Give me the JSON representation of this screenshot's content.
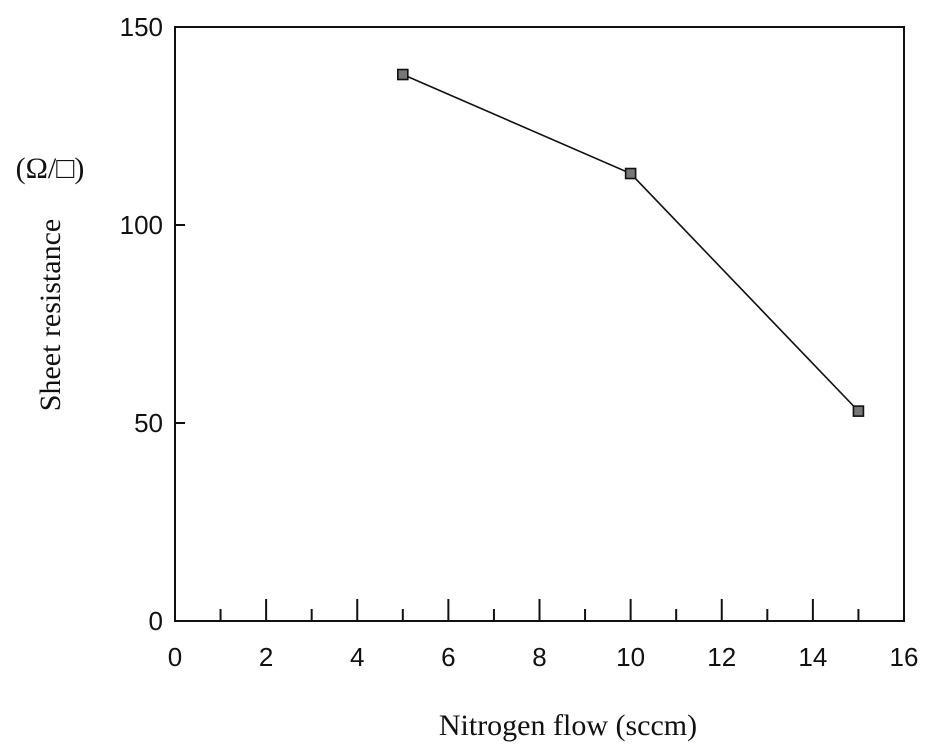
{
  "chart_data": {
    "type": "line",
    "title": "",
    "xlabel": "Nitrogen flow (sccm)",
    "ylabel": "Sheet resistance",
    "ylabel_unit": "(Ω/□)",
    "xlim": [
      0,
      16
    ],
    "ylim": [
      0,
      150
    ],
    "xticks": [
      0,
      2,
      4,
      6,
      8,
      10,
      12,
      14,
      16
    ],
    "xticks_minor": [
      1,
      3,
      5,
      7,
      9,
      11,
      13,
      15
    ],
    "yticks": [
      0,
      50,
      100,
      150
    ],
    "grid": false,
    "legend": "none",
    "series": [
      {
        "x": [
          5,
          10,
          15
        ],
        "y": [
          138,
          113,
          53
        ],
        "marker": "square",
        "color": "#111111"
      }
    ]
  }
}
